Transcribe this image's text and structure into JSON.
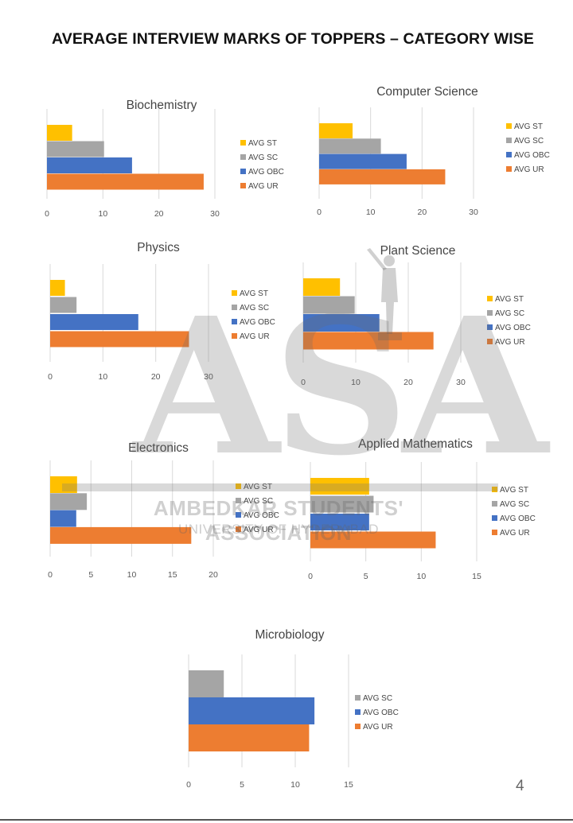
{
  "page": {
    "title": "AVERAGE INTERVIEW MARKS OF TOPPERS – CATEGORY WISE",
    "page_number": "4"
  },
  "watermark": {
    "letters": "ASA",
    "organization": "AMBEDKAR STUDENTS' ASSOCIATION",
    "university": "UNIVERSITY OF HYDERABAD"
  },
  "colors": {
    "AVG ST": "#FFC000",
    "AVG SC": "#A5A5A5",
    "AVG OBC": "#4472C4",
    "AVG UR": "#ED7D31",
    "gridline": "#D9D9D9",
    "axis_text": "#595959"
  },
  "chart_data": [
    {
      "type": "bar",
      "orientation": "horizontal",
      "title": "Biochemistry",
      "categories": [
        "AVG ST",
        "AVG SC",
        "AVG OBC",
        "AVG UR"
      ],
      "values": [
        4.5,
        10.2,
        15.2,
        28
      ],
      "xlim": [
        0,
        30
      ],
      "xticks": [
        0,
        10,
        20,
        30
      ],
      "grid": true,
      "legend": "right"
    },
    {
      "type": "bar",
      "orientation": "horizontal",
      "title": "Computer Science",
      "categories": [
        "AVG ST",
        "AVG SC",
        "AVG OBC",
        "AVG UR"
      ],
      "values": [
        6.5,
        12,
        17,
        24.5
      ],
      "xlim": [
        0,
        30
      ],
      "xticks": [
        0,
        10,
        20,
        30
      ],
      "grid": true,
      "legend": "right"
    },
    {
      "type": "bar",
      "orientation": "horizontal",
      "title": "Physics",
      "categories": [
        "AVG ST",
        "AVG SC",
        "AVG OBC",
        "AVG UR"
      ],
      "values": [
        2.8,
        5,
        16.7,
        26.3
      ],
      "xlim": [
        0,
        30
      ],
      "xticks": [
        0,
        10,
        20,
        30
      ],
      "grid": true,
      "legend": "right"
    },
    {
      "type": "bar",
      "orientation": "horizontal",
      "title": "Plant Science",
      "categories": [
        "AVG ST",
        "AVG SC",
        "AVG OBC",
        "AVG UR"
      ],
      "values": [
        7,
        9.8,
        14.5,
        24.8
      ],
      "xlim": [
        0,
        30
      ],
      "xticks": [
        0,
        10,
        20,
        30
      ],
      "grid": true,
      "legend": "right"
    },
    {
      "type": "bar",
      "orientation": "horizontal",
      "title": "Electronics",
      "categories": [
        "AVG ST",
        "AVG SC",
        "AVG OBC",
        "AVG UR"
      ],
      "values": [
        3.3,
        4.5,
        3.2,
        17.3
      ],
      "xlim": [
        0,
        20
      ],
      "xticks": [
        0,
        5,
        10,
        15,
        20
      ],
      "grid": true,
      "legend": "right"
    },
    {
      "type": "bar",
      "orientation": "horizontal",
      "title": "Applied Mathematics",
      "categories": [
        "AVG ST",
        "AVG SC",
        "AVG OBC",
        "AVG UR"
      ],
      "values": [
        5.3,
        5.7,
        5.3,
        11.3
      ],
      "xlim": [
        0,
        15
      ],
      "xticks": [
        0,
        5,
        10,
        15
      ],
      "grid": true,
      "legend": "right"
    },
    {
      "type": "bar",
      "orientation": "horizontal",
      "title": "Microbiology",
      "categories": [
        "AVG SC",
        "AVG OBC",
        "AVG UR"
      ],
      "values": [
        3.3,
        11.8,
        11.3
      ],
      "xlim": [
        0,
        15
      ],
      "xticks": [
        0,
        5,
        10,
        15
      ],
      "grid": true,
      "legend": "right"
    }
  ]
}
